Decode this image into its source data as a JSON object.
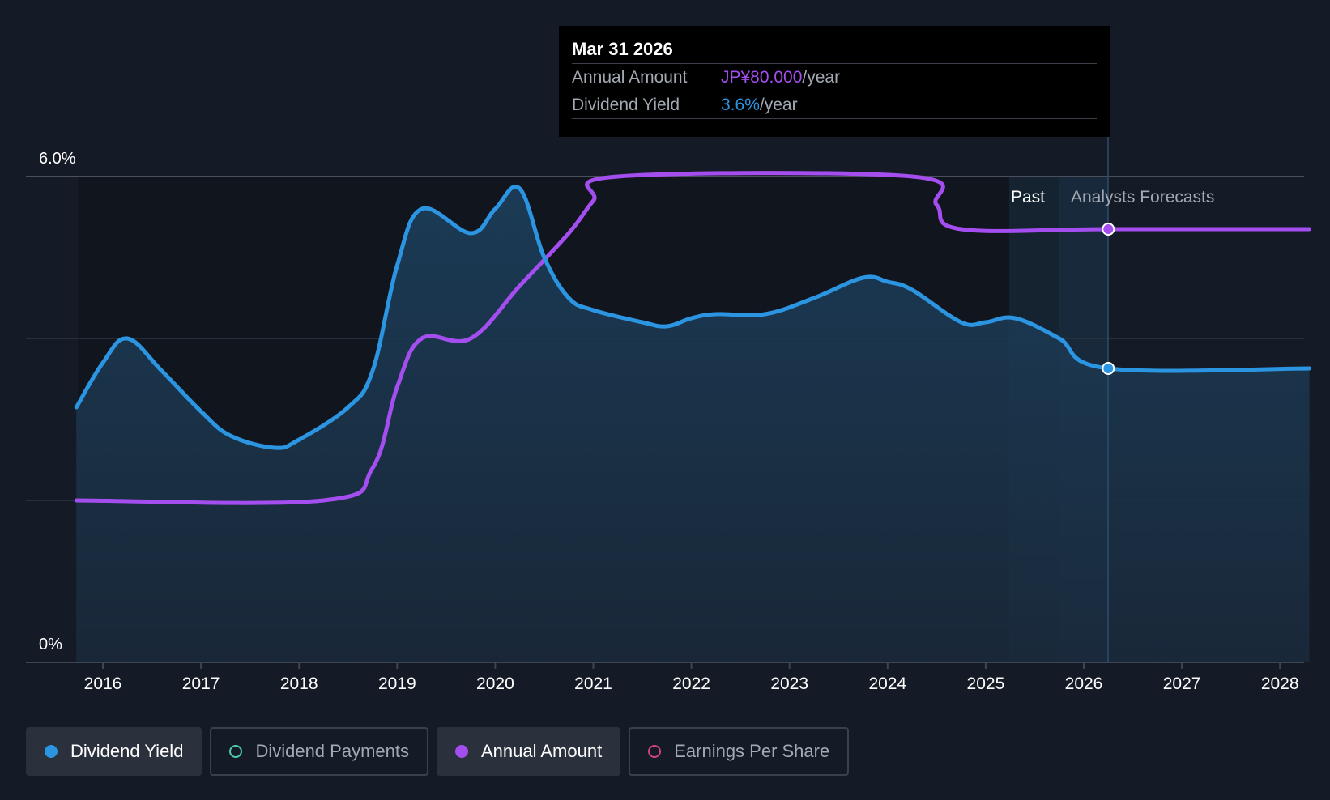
{
  "chart_data": {
    "type": "line",
    "title": "",
    "x_ticks": [
      "2016",
      "2017",
      "2018",
      "2019",
      "2020",
      "2021",
      "2022",
      "2023",
      "2024",
      "2025",
      "2026",
      "2027",
      "2028"
    ],
    "y_ticks": [
      "6.0%",
      "0%"
    ],
    "ylim": [
      0,
      6.0
    ],
    "xlim": [
      2015.25,
      2028.3
    ],
    "series": [
      {
        "name": "Dividend Yield",
        "color": "#2b95e2",
        "points": [
          [
            2015.73,
            3.15
          ],
          [
            2016.0,
            3.7
          ],
          [
            2016.25,
            4.0
          ],
          [
            2016.6,
            3.6
          ],
          [
            2017.0,
            3.1
          ],
          [
            2017.3,
            2.8
          ],
          [
            2017.75,
            2.65
          ],
          [
            2018.0,
            2.75
          ],
          [
            2018.5,
            3.15
          ],
          [
            2018.75,
            3.6
          ],
          [
            2019.0,
            4.9
          ],
          [
            2019.25,
            5.6
          ],
          [
            2019.75,
            5.3
          ],
          [
            2020.0,
            5.6
          ],
          [
            2020.25,
            5.85
          ],
          [
            2020.5,
            5.0
          ],
          [
            2020.75,
            4.5
          ],
          [
            2021.0,
            4.35
          ],
          [
            2021.5,
            4.2
          ],
          [
            2021.75,
            4.15
          ],
          [
            2022.0,
            4.25
          ],
          [
            2022.25,
            4.3
          ],
          [
            2022.75,
            4.3
          ],
          [
            2023.25,
            4.5
          ],
          [
            2023.75,
            4.75
          ],
          [
            2024.0,
            4.7
          ],
          [
            2024.25,
            4.6
          ],
          [
            2024.75,
            4.2
          ],
          [
            2025.0,
            4.2
          ],
          [
            2025.3,
            4.25
          ],
          [
            2025.75,
            4.0
          ],
          [
            2026.25,
            3.63
          ],
          [
            2028.3,
            3.63
          ]
        ]
      },
      {
        "name": "Annual Amount",
        "color": "#a44ef0",
        "points": [
          [
            2015.73,
            2.0
          ],
          [
            2018.25,
            2.0
          ],
          [
            2018.75,
            2.4
          ],
          [
            2019.0,
            3.4
          ],
          [
            2019.25,
            4.0
          ],
          [
            2019.75,
            4.0
          ],
          [
            2020.25,
            4.65
          ],
          [
            2020.75,
            5.3
          ],
          [
            2021.0,
            5.7
          ],
          [
            2021.25,
            6.0
          ],
          [
            2024.25,
            6.0
          ],
          [
            2024.5,
            5.65
          ],
          [
            2024.75,
            5.35
          ],
          [
            2026.25,
            5.35
          ],
          [
            2028.3,
            5.35
          ]
        ]
      }
    ],
    "highlight": {
      "x": 2026.25,
      "yield": 3.63,
      "amount": 5.35
    },
    "past_label": "Past",
    "forecast_label": "Analysts Forecasts"
  },
  "tooltip": {
    "date": "Mar 31 2026",
    "annual_amount_label": "Annual Amount",
    "annual_amount_value": "JP¥80.000",
    "annual_amount_unit": "/year",
    "dividend_yield_label": "Dividend Yield",
    "dividend_yield_value": "3.6%",
    "dividend_yield_unit": "/year"
  },
  "legend": [
    {
      "label": "Dividend Yield",
      "color": "#2b95e2",
      "active": true
    },
    {
      "label": "Dividend Payments",
      "color": "#4cc9b0",
      "active": false
    },
    {
      "label": "Annual Amount",
      "color": "#a44ef0",
      "active": true
    },
    {
      "label": "Earnings Per Share",
      "color": "#d0457a",
      "active": false
    }
  ],
  "colors": {
    "background": "#151b26",
    "yield": "#2b95e2",
    "amount": "#a44ef0",
    "tooltip_bg": "#000000"
  }
}
